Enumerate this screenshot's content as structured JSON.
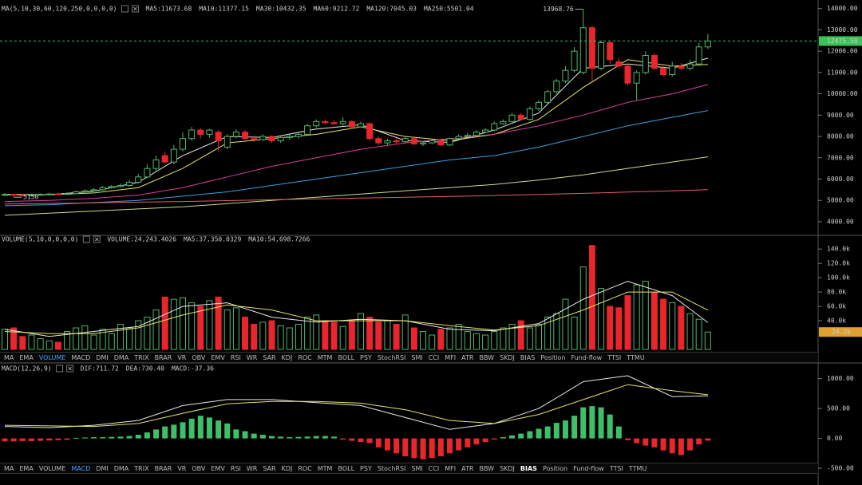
{
  "main": {
    "legend_title": "MA(5,10,30,60,120,250,0,0,0,0)",
    "ylim": [
      3400,
      14400
    ],
    "yticks": [
      {
        "value": 4000,
        "label": "4000.00"
      },
      {
        "value": 5000,
        "label": "5000.00"
      },
      {
        "value": 6000,
        "label": "6000.00"
      },
      {
        "value": 7000,
        "label": "7000.00"
      },
      {
        "value": 8000,
        "label": "8000.00"
      },
      {
        "value": 9000,
        "label": "9000.00"
      },
      {
        "value": 10000,
        "label": "10000.00"
      },
      {
        "value": 11000,
        "label": "11000.00"
      },
      {
        "value": 12000,
        "label": "12000.00"
      },
      {
        "value": 13000,
        "label": "13000.00"
      },
      {
        "value": 14000,
        "label": "14000.00"
      }
    ],
    "up_color": "#4fb86a",
    "down_color": "#e8262b",
    "candles": [
      [
        5250,
        5350,
        5200,
        5280
      ],
      [
        5280,
        5320,
        5150,
        5250
      ],
      [
        5250,
        5300,
        5180,
        5230
      ],
      [
        5230,
        5310,
        5190,
        5260
      ],
      [
        5260,
        5330,
        5220,
        5280
      ],
      [
        5280,
        5350,
        5240,
        5300
      ],
      [
        5300,
        5360,
        5240,
        5290
      ],
      [
        5290,
        5380,
        5250,
        5320
      ],
      [
        5320,
        5460,
        5290,
        5400
      ],
      [
        5400,
        5520,
        5360,
        5450
      ],
      [
        5450,
        5580,
        5410,
        5500
      ],
      [
        5500,
        5680,
        5460,
        5600
      ],
      [
        5600,
        5720,
        5550,
        5650
      ],
      [
        5650,
        5790,
        5600,
        5700
      ],
      [
        5700,
        5950,
        5650,
        5850
      ],
      [
        5850,
        6250,
        5800,
        6100
      ],
      [
        6100,
        6700,
        6050,
        6500
      ],
      [
        6500,
        7100,
        6400,
        6900
      ],
      [
        7100,
        7300,
        6700,
        6800
      ],
      [
        6800,
        7600,
        6700,
        7400
      ],
      [
        7400,
        8200,
        7300,
        7900
      ],
      [
        7900,
        8450,
        7800,
        8300
      ],
      [
        8300,
        8400,
        7900,
        8100
      ],
      [
        8100,
        8350,
        7950,
        8300
      ],
      [
        8200,
        8300,
        7300,
        7800
      ],
      [
        7500,
        8100,
        7400,
        8000
      ],
      [
        8000,
        8350,
        7900,
        8200
      ],
      [
        8200,
        8300,
        7850,
        7900
      ],
      [
        7900,
        8050,
        7750,
        7850
      ],
      [
        7850,
        8100,
        7800,
        8000
      ],
      [
        8000,
        8050,
        7700,
        7800
      ],
      [
        7800,
        8000,
        7700,
        7950
      ],
      [
        7950,
        8100,
        7850,
        8000
      ],
      [
        8000,
        8200,
        7900,
        8100
      ],
      [
        8100,
        8600,
        8050,
        8500
      ],
      [
        8500,
        8800,
        8400,
        8700
      ],
      [
        8700,
        8800,
        8600,
        8650
      ],
      [
        8650,
        8750,
        8550,
        8600
      ],
      [
        8600,
        8900,
        8500,
        8700
      ],
      [
        8700,
        8750,
        8350,
        8450
      ],
      [
        8450,
        8700,
        8400,
        8600
      ],
      [
        8600,
        8650,
        7800,
        7900
      ],
      [
        7900,
        8000,
        7600,
        7700
      ],
      [
        7700,
        7900,
        7600,
        7800
      ],
      [
        7800,
        7900,
        7650,
        7750
      ],
      [
        7750,
        8000,
        7700,
        7900
      ],
      [
        7900,
        7950,
        7600,
        7650
      ],
      [
        7650,
        7800,
        7550,
        7700
      ],
      [
        7700,
        7900,
        7650,
        7800
      ],
      [
        7800,
        7850,
        7550,
        7600
      ],
      [
        7600,
        7950,
        7550,
        7900
      ],
      [
        7900,
        8100,
        7850,
        8000
      ],
      [
        8000,
        8150,
        7950,
        8050
      ],
      [
        8050,
        8300,
        8000,
        8200
      ],
      [
        8200,
        8400,
        8150,
        8300
      ],
      [
        8300,
        8700,
        8250,
        8600
      ],
      [
        8600,
        8800,
        8550,
        8700
      ],
      [
        8700,
        9100,
        8650,
        9000
      ],
      [
        9000,
        9100,
        8750,
        8800
      ],
      [
        8800,
        9400,
        8750,
        9300
      ],
      [
        9300,
        9700,
        9200,
        9600
      ],
      [
        9600,
        10200,
        9500,
        10100
      ],
      [
        10100,
        10700,
        10000,
        10600
      ],
      [
        10600,
        11300,
        10500,
        11100
      ],
      [
        11100,
        12200,
        11000,
        12000
      ],
      [
        11000,
        13968.76,
        10900,
        13100
      ],
      [
        13100,
        13200,
        10600,
        11200
      ],
      [
        11200,
        12500,
        11100,
        12400
      ],
      [
        12400,
        12500,
        11400,
        11600
      ],
      [
        11500,
        11700,
        11200,
        11300
      ],
      [
        11300,
        11400,
        10400,
        10500
      ],
      [
        10500,
        11100,
        9700,
        11000
      ],
      [
        11000,
        12000,
        10900,
        11800
      ],
      [
        11800,
        11900,
        11100,
        11200
      ],
      [
        11200,
        11300,
        10800,
        10900
      ],
      [
        10900,
        11500,
        10800,
        11300
      ],
      [
        11300,
        11450,
        11100,
        11200
      ],
      [
        11200,
        11600,
        11100,
        11400
      ],
      [
        11400,
        12400,
        11300,
        12200
      ],
      [
        12200,
        12800,
        12100,
        12475.5
      ]
    ],
    "high_label": "13968.76",
    "low_label": "5150",
    "current_label": "12475.50",
    "current_color": "#3cc45a",
    "ma_x": [
      0,
      5,
      10,
      15,
      20,
      25,
      30,
      35,
      40,
      45,
      50,
      55,
      60,
      65,
      70,
      75,
      79
    ],
    "ma": [
      {
        "legend": "MA5:11673.68",
        "color": "#e8e8e8",
        "values": [
          5260,
          5270,
          5430,
          5850,
          7100,
          8000,
          7950,
          8350,
          8550,
          7800,
          7720,
          8300,
          9100,
          11200,
          11400,
          11200,
          11673.68
        ]
      },
      {
        "legend": "MA10:11377.15",
        "color": "#e6e36a",
        "values": [
          5280,
          5270,
          5350,
          5600,
          6500,
          7700,
          7900,
          8100,
          8450,
          8000,
          7800,
          8100,
          8800,
          10300,
          11600,
          11300,
          11377.15
        ]
      },
      {
        "legend": "MA30:10432.35",
        "color": "#d8409e",
        "values": [
          4950,
          5000,
          5100,
          5250,
          5600,
          6100,
          6600,
          7000,
          7400,
          7700,
          7900,
          8100,
          8500,
          9000,
          9600,
          10000,
          10432.35
        ]
      },
      {
        "legend": "MA60:9212.72",
        "color": "#3d9fe0",
        "values": [
          4750,
          4800,
          4900,
          5000,
          5200,
          5400,
          5700,
          6000,
          6300,
          6600,
          6900,
          7100,
          7500,
          8000,
          8500,
          8900,
          9212.72
        ]
      },
      {
        "legend": "MA120:7045.03",
        "color": "#c6df8e",
        "values": [
          4300,
          4400,
          4500,
          4600,
          4700,
          4850,
          5000,
          5150,
          5300,
          5450,
          5600,
          5750,
          5950,
          6200,
          6500,
          6800,
          7045.03
        ]
      },
      {
        "legend": "MA250:5501.04",
        "color": "#e65c6c",
        "values": [
          4830,
          4860,
          4890,
          4920,
          4950,
          4990,
          5030,
          5070,
          5110,
          5150,
          5190,
          5230,
          5280,
          5330,
          5390,
          5450,
          5501.04
        ]
      }
    ]
  },
  "volume": {
    "legend_title": "VOLUME(5,10,0,0,0,0)",
    "legend": "VOLUME:24,243.4026",
    "ylim": [
      0,
      158000
    ],
    "yticks": [
      {
        "value": 40000,
        "label": "40.0k"
      },
      {
        "value": 60000,
        "label": "60.0k"
      },
      {
        "value": 80000,
        "label": "80.0k"
      },
      {
        "value": 100000,
        "label": "100.0k"
      },
      {
        "value": 120000,
        "label": "120.0k"
      },
      {
        "value": 140000,
        "label": "140.0k"
      }
    ],
    "values": [
      28000,
      30000,
      18000,
      20000,
      15000,
      12000,
      10000,
      25000,
      30000,
      33000,
      20000,
      28000,
      22000,
      35000,
      30000,
      40000,
      45000,
      55000,
      73000,
      70000,
      72000,
      65000,
      60000,
      68000,
      73000,
      55000,
      58000,
      45000,
      35000,
      38000,
      40000,
      33000,
      30000,
      35000,
      45000,
      48000,
      40000,
      38000,
      32000,
      40000,
      50000,
      45000,
      38000,
      40000,
      35000,
      48000,
      30000,
      25000,
      20000,
      28000,
      30000,
      35000,
      25000,
      22000,
      20000,
      25000,
      30000,
      35000,
      40000,
      30000,
      35000,
      45000,
      50000,
      70000,
      45000,
      115000,
      145000,
      85000,
      60000,
      58000,
      75000,
      90000,
      95000,
      80000,
      70000,
      65000,
      60000,
      50000,
      42000,
      24243.4026
    ],
    "current_label": "24.2k",
    "current_color": "#e0a030",
    "ma": [
      {
        "legend": "MA5:37,350.0329",
        "color": "#e8e8e8",
        "values": [
          28000,
          18000,
          25000,
          32000,
          60000,
          65000,
          45000,
          38000,
          42000,
          40000,
          28000,
          26000,
          36000,
          70000,
          95000,
          75000,
          37350.0329
        ]
      },
      {
        "legend": "MA10:54,698.7266",
        "color": "#e6e36a",
        "values": [
          25000,
          22000,
          22000,
          30000,
          48000,
          62000,
          55000,
          40000,
          40000,
          40000,
          33000,
          27000,
          33000,
          55000,
          80000,
          80000,
          54698.7266
        ]
      }
    ]
  },
  "macd": {
    "legend_title": "MACD(12,26,9)",
    "ylim": [
      -500,
      1250
    ],
    "yticks": [
      {
        "value": -500,
        "label": "-500.00"
      },
      {
        "value": 0,
        "label": "0.00"
      },
      {
        "value": 500,
        "label": "500.00"
      },
      {
        "value": 1000,
        "label": "1000.00"
      }
    ],
    "hist_legend": "MACD:-37.36",
    "hist_legend_color": "#d8409e",
    "up_color": "#3fbf6a",
    "down_color": "#e8262b",
    "hist": [
      -50,
      -50,
      -45,
      -45,
      -40,
      -35,
      -30,
      -25,
      10,
      15,
      20,
      20,
      25,
      30,
      40,
      60,
      100,
      150,
      200,
      230,
      270,
      330,
      380,
      350,
      300,
      250,
      150,
      120,
      80,
      60,
      40,
      30,
      20,
      25,
      30,
      40,
      40,
      30,
      -20,
      -40,
      -60,
      -80,
      -150,
      -200,
      -250,
      -300,
      -330,
      -350,
      -330,
      -300,
      -250,
      -200,
      -150,
      -100,
      -60,
      -20,
      20,
      50,
      80,
      120,
      160,
      200,
      260,
      300,
      380,
      520,
      540,
      520,
      400,
      200,
      -30,
      -80,
      -120,
      -150,
      -200,
      -250,
      -280,
      -200,
      -100,
      -37.36
    ],
    "lines": [
      {
        "legend": "DIF:711.72",
        "color": "#e8e8e8",
        "values": [
          200,
          180,
          220,
          300,
          550,
          650,
          650,
          600,
          550,
          350,
          150,
          250,
          500,
          950,
          1050,
          700,
          711.72
        ]
      },
      {
        "legend": "DEA:730.40",
        "color": "#e6e36a",
        "values": [
          220,
          210,
          200,
          250,
          420,
          580,
          620,
          620,
          590,
          480,
          300,
          250,
          400,
          650,
          900,
          800,
          730.4
        ]
      }
    ]
  },
  "tabs": {
    "items": [
      "MA",
      "EMA",
      "VOLUME",
      "MACD",
      "DMI",
      "DMA",
      "TRIX",
      "BRAR",
      "VR",
      "OBV",
      "EMV",
      "RSI",
      "WR",
      "SAR",
      "KDJ",
      "ROC",
      "MTM",
      "BOLL",
      "PSY",
      "StochRSI",
      "SMI",
      "CCI",
      "MFI",
      "ATR",
      "BBW",
      "SKDJ",
      "BIAS",
      "Position",
      "Fund-flow",
      "TTSI",
      "TTMU"
    ],
    "bars": [
      {
        "active": 2
      },
      {
        "active": 3,
        "highlight": 26
      }
    ]
  }
}
